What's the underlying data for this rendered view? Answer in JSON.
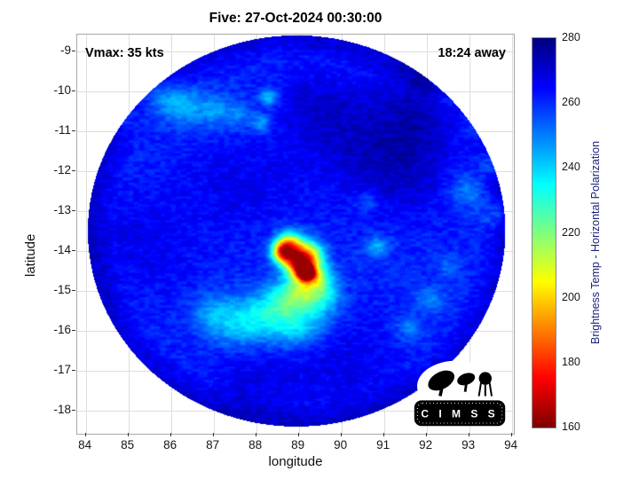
{
  "title": "Five: 27-Oct-2024 00:30:00",
  "annotations": {
    "vmax": "Vmax: 35 kts",
    "time_away": "18:24 away"
  },
  "axes": {
    "xlabel": "longitude",
    "ylabel": "latitude",
    "x_ticks": [
      84,
      85,
      86,
      87,
      88,
      89,
      90,
      91,
      92,
      93,
      94
    ],
    "y_ticks": [
      -9,
      -10,
      -11,
      -12,
      -13,
      -14,
      -15,
      -16,
      -17,
      -18
    ],
    "x_range": [
      83.8,
      94.05
    ],
    "y_range": [
      -18.58,
      -8.58
    ],
    "grid": true
  },
  "colorbar": {
    "label": "Brightness Temp - Horizontal Polarization",
    "min": 160,
    "max": 280,
    "ticks": [
      280,
      260,
      240,
      220,
      200,
      180,
      160
    ],
    "colormap": "jet-reversed",
    "colormap_stops_top_to_bottom": [
      "#00008f",
      "#0000ff",
      "#00ffff",
      "#80ff80",
      "#ffff00",
      "#ff0000",
      "#8f0000"
    ]
  },
  "logo": {
    "text": "C I M S S"
  },
  "chart_data": {
    "type": "heatmap",
    "title": "Five: 27-Oct-2024 00:30:00",
    "xlabel": "longitude",
    "ylabel": "latitude",
    "value_label": "Brightness Temp - Horizontal Polarization",
    "value_range": [
      160,
      280
    ],
    "x_range": [
      83.8,
      94.05
    ],
    "y_range": [
      -18.58,
      -8.58
    ],
    "background_temp": 261,
    "swath_disk": {
      "center_lon": 88.95,
      "center_lat": -13.5,
      "radius_deg": 4.9,
      "rim_temp_boost": 9
    },
    "features": [
      {
        "lon": 89.18,
        "lat": -14.55,
        "sigma": 0.13,
        "temp": 176
      },
      {
        "lon": 89.05,
        "lat": -14.35,
        "sigma": 0.22,
        "temp": 198
      },
      {
        "lon": 88.9,
        "lat": -14.1,
        "sigma": 0.28,
        "temp": 215
      },
      {
        "lon": 88.62,
        "lat": -14.02,
        "sigma": 0.18,
        "temp": 208
      },
      {
        "lon": 88.78,
        "lat": -13.8,
        "sigma": 0.22,
        "temp": 224
      },
      {
        "lon": 89.32,
        "lat": -14.05,
        "sigma": 0.22,
        "temp": 228
      },
      {
        "lon": 89.4,
        "lat": -14.6,
        "sigma": 0.25,
        "temp": 226
      },
      {
        "lon": 89.1,
        "lat": -14.95,
        "sigma": 0.3,
        "temp": 232
      },
      {
        "lon": 88.7,
        "lat": -15.25,
        "sigma": 0.35,
        "temp": 238
      },
      {
        "lon": 88.15,
        "lat": -15.65,
        "sigma": 0.45,
        "temp": 242
      },
      {
        "lon": 87.5,
        "lat": -15.85,
        "sigma": 0.45,
        "temp": 246
      },
      {
        "lon": 86.95,
        "lat": -15.55,
        "sigma": 0.35,
        "temp": 250
      },
      {
        "lon": 89.6,
        "lat": -15.1,
        "sigma": 0.3,
        "temp": 240
      },
      {
        "lon": 89.3,
        "lat": -15.7,
        "sigma": 0.4,
        "temp": 246
      },
      {
        "lon": 88.8,
        "lat": -16.0,
        "sigma": 0.35,
        "temp": 248
      },
      {
        "lon": 85.7,
        "lat": -10.1,
        "sigma": 0.3,
        "temp": 248
      },
      {
        "lon": 86.3,
        "lat": -10.35,
        "sigma": 0.35,
        "temp": 246
      },
      {
        "lon": 87.0,
        "lat": -10.5,
        "sigma": 0.3,
        "temp": 248
      },
      {
        "lon": 87.6,
        "lat": -10.6,
        "sigma": 0.25,
        "temp": 250
      },
      {
        "lon": 88.3,
        "lat": -10.15,
        "sigma": 0.15,
        "temp": 240
      },
      {
        "lon": 88.15,
        "lat": -10.8,
        "sigma": 0.15,
        "temp": 244
      },
      {
        "lon": 84.9,
        "lat": -10.6,
        "sigma": 0.3,
        "temp": 252
      },
      {
        "lon": 92.55,
        "lat": -10.25,
        "sigma": 0.3,
        "temp": 248
      },
      {
        "lon": 93.1,
        "lat": -10.9,
        "sigma": 0.3,
        "temp": 248
      },
      {
        "lon": 93.5,
        "lat": -11.8,
        "sigma": 0.25,
        "temp": 250
      },
      {
        "lon": 92.95,
        "lat": -12.5,
        "sigma": 0.3,
        "temp": 250
      },
      {
        "lon": 93.6,
        "lat": -13.1,
        "sigma": 0.25,
        "temp": 252
      },
      {
        "lon": 90.85,
        "lat": -13.9,
        "sigma": 0.2,
        "temp": 244
      },
      {
        "lon": 90.6,
        "lat": -12.75,
        "sigma": 0.2,
        "temp": 252
      },
      {
        "lon": 92.1,
        "lat": -15.2,
        "sigma": 0.25,
        "temp": 250
      },
      {
        "lon": 91.6,
        "lat": -15.95,
        "sigma": 0.25,
        "temp": 250
      },
      {
        "lon": 92.5,
        "lat": -14.4,
        "sigma": 0.2,
        "temp": 254
      },
      {
        "lon": 90.4,
        "lat": -11.3,
        "sigma": 1.0,
        "temp": 270
      },
      {
        "lon": 91.9,
        "lat": -10.6,
        "sigma": 0.8,
        "temp": 271
      },
      {
        "lon": 89.3,
        "lat": -10.3,
        "sigma": 0.6,
        "temp": 268
      },
      {
        "lon": 87.6,
        "lat": -12.3,
        "sigma": 0.9,
        "temp": 267
      },
      {
        "lon": 85.3,
        "lat": -13.8,
        "sigma": 1.0,
        "temp": 267
      },
      {
        "lon": 90.2,
        "lat": -16.8,
        "sigma": 0.9,
        "temp": 267
      },
      {
        "lon": 88.0,
        "lat": -17.3,
        "sigma": 0.8,
        "temp": 268
      },
      {
        "lon": 91.5,
        "lat": -12.2,
        "sigma": 0.7,
        "temp": 268
      }
    ]
  }
}
